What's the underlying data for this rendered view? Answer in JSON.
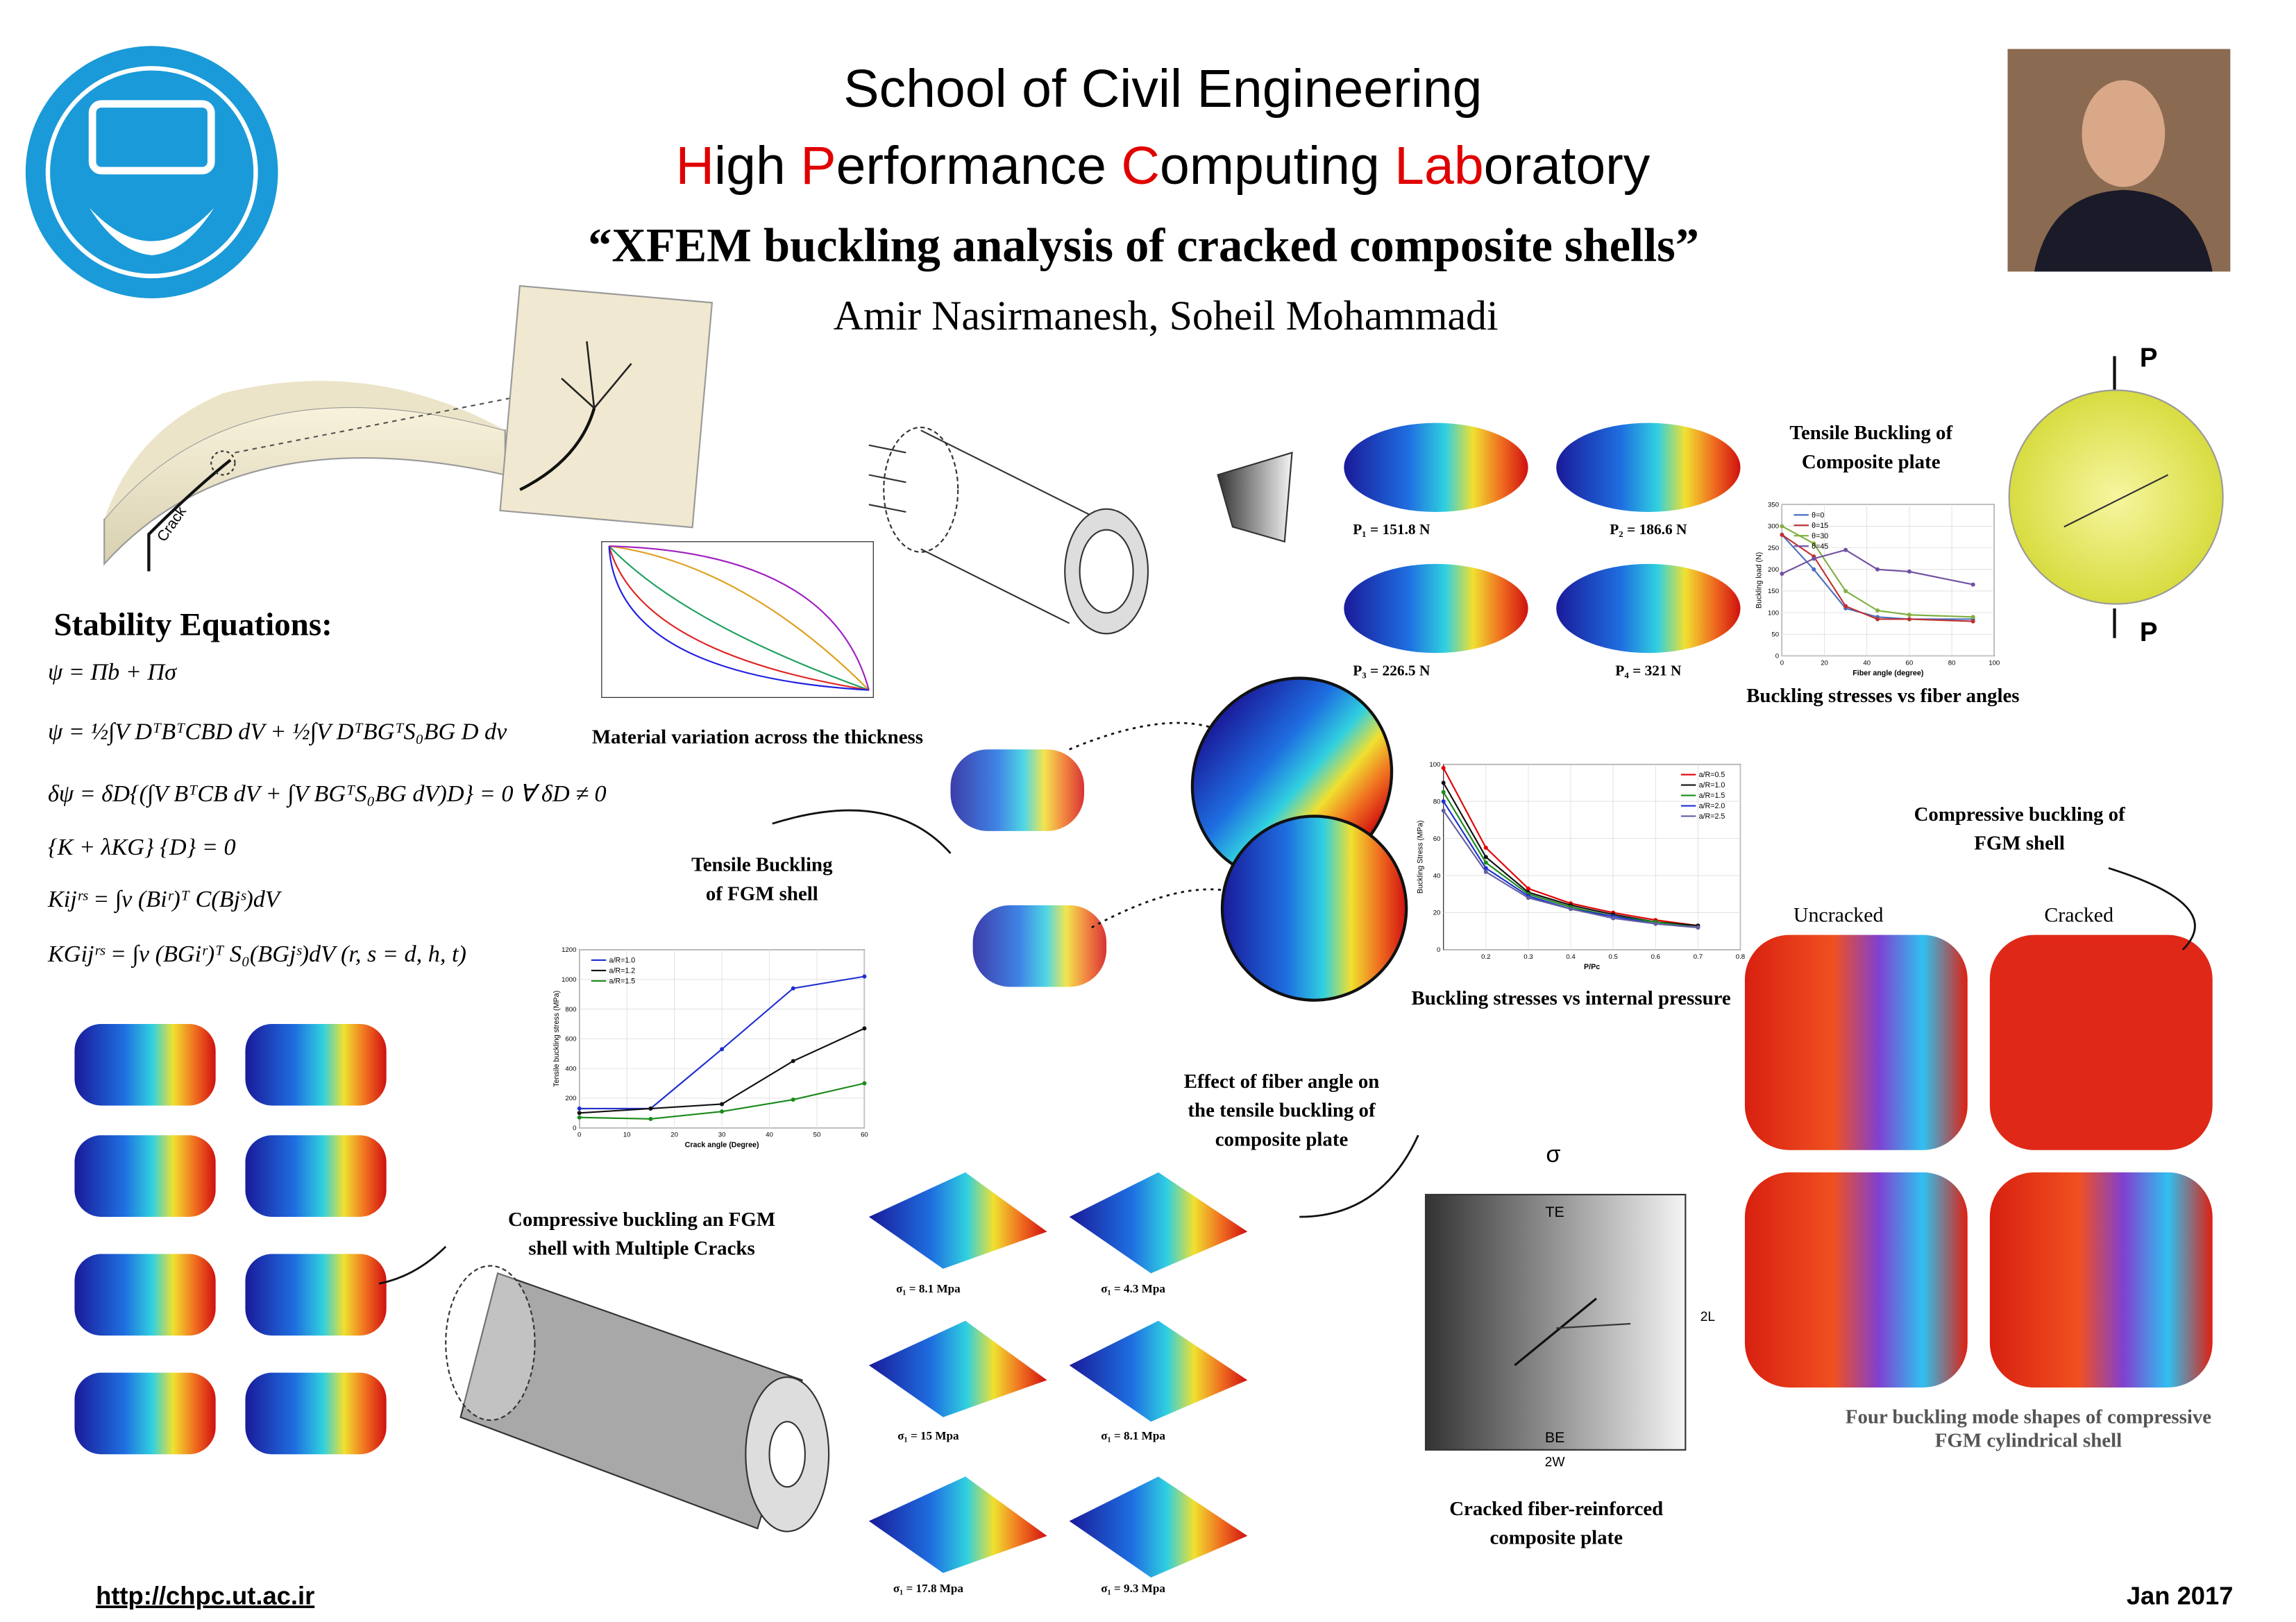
{
  "header": {
    "title": "School of Civil Engineering",
    "lab": [
      "H",
      "igh ",
      "P",
      "erformance ",
      "C",
      "omputing ",
      "Lab",
      "oratory"
    ],
    "highlight_color": "#e00000",
    "subtitle": "“XFEM buckling analysis of cracked composite shells”",
    "authors": "Amir Nasirmanesh, Soheil Mohammadi"
  },
  "stability": {
    "heading": "Stability Equations:",
    "equations": [
      "ψ = Πb + Πσ",
      "ψ = ½∫V DᵀBᵀCBD dV + ½∫V DᵀBGᵀS₀BG D dv",
      "δψ = δD{(∫V BᵀCB dV + ∫V BGᵀS₀BG dV)D} = 0     ∀ δD ≠ 0",
      "{K + λKG} {D} = 0",
      "Kijʳˢ = ∫v (Biʳ)ᵀ C(Bjˢ)dV",
      "KGijʳˢ = ∫v (BGiʳ)ᵀ S₀(BGjˢ)dV            (r, s = d, h, t)"
    ]
  },
  "captions": {
    "material": [
      "Material variation across the thickness"
    ],
    "tensile_plate": [
      "Tensile Buckling of",
      "Composite plate"
    ],
    "fiber_angles": [
      "Buckling stresses vs fiber angles"
    ],
    "tensile_fgm": [
      "Tensile Buckling",
      "of FGM shell"
    ],
    "compressive_fgm": [
      "Compressive buckling of",
      "FGM shell"
    ],
    "pressure": [
      "Buckling stresses vs internal pressure"
    ],
    "fiber_effect": [
      "Effect of fiber angle on",
      "the tensile buckling of",
      "composite plate"
    ],
    "multiple": [
      "Compressive buckling an FGM",
      "shell with Multiple Cracks"
    ],
    "cracked_plate": [
      "Cracked fiber-reinforced",
      "composite plate"
    ],
    "four_modes": [
      "Four buckling mode shapes of compressive",
      "FGM cylindrical shell"
    ]
  },
  "labels": {
    "crack": "Crack",
    "uncracked": "Uncracked",
    "cracked": "Cracked",
    "P_top": "P",
    "P_bottom": "P",
    "sigma": "σ",
    "TE": "TE",
    "BE": "BE",
    "width": "2W",
    "length": "2L"
  },
  "plate_loads": [
    "P₁ = 151.8 N",
    "P₂ = 186.6 N",
    "P₃ = 226.5 N",
    "P₄ = 321 N"
  ],
  "fiber_stresses": [
    "σ₁ = 8.1 Mpa",
    "σ₁ = 4.3 Mpa",
    "σ₁ = 15 Mpa",
    "σ₁ = 8.1 Mpa",
    "σ₁ = 17.8 Mpa",
    "σ₁ = 9.3 Mpa"
  ],
  "charts": [
    {
      "type": "line",
      "xlabel": "Crack angle (Degree)",
      "ylabel": "Tensile buckling stress (MPa)",
      "x": [
        0,
        15,
        30,
        45,
        60
      ],
      "xlim": [
        0,
        60
      ],
      "xticks": [
        0,
        10,
        20,
        30,
        40,
        50,
        60
      ],
      "ylim": [
        0,
        1200
      ],
      "yticks": [
        0,
        200,
        400,
        600,
        800,
        1000,
        1200
      ],
      "series": [
        {
          "name": "a/R=1.0",
          "color": "#1f2fd0",
          "values": [
            130,
            130,
            530,
            940,
            1020
          ]
        },
        {
          "name": "a/R=1.2",
          "color": "#111111",
          "values": [
            100,
            130,
            160,
            450,
            670
          ]
        },
        {
          "name": "a/R=1.5",
          "color": "#1a8a1a",
          "values": [
            70,
            60,
            110,
            190,
            300
          ]
        }
      ]
    },
    {
      "type": "line",
      "xlabel": "P/Pc",
      "ylabel": "Buckling Stress (MPa)",
      "x": [
        0.1,
        0.2,
        0.3,
        0.4,
        0.5,
        0.6,
        0.7
      ],
      "xlim": [
        0.1,
        0.8
      ],
      "xticks": [
        0.2,
        0.3,
        0.4,
        0.5,
        0.6,
        0.7,
        0.8
      ],
      "ylim": [
        0,
        100
      ],
      "yticks": [
        0,
        20,
        40,
        60,
        80,
        100
      ],
      "series": [
        {
          "name": "a/R=0.5",
          "color": "#e00000",
          "values": [
            98,
            55,
            33,
            25,
            20,
            16,
            13
          ]
        },
        {
          "name": "a/R=1.0",
          "color": "#111111",
          "values": [
            90,
            50,
            31,
            24,
            19,
            15,
            13
          ]
        },
        {
          "name": "a/R=1.5",
          "color": "#1a8a1a",
          "values": [
            85,
            47,
            30,
            23,
            18,
            15,
            12
          ]
        },
        {
          "name": "a/R=2.0",
          "color": "#1f2fd0",
          "values": [
            80,
            44,
            29,
            22,
            18,
            14,
            12
          ]
        },
        {
          "name": "a/R=2.5",
          "color": "#6060a0",
          "values": [
            75,
            42,
            28,
            22,
            17,
            14,
            12
          ]
        }
      ]
    },
    {
      "type": "line",
      "xlabel": "Fiber angle (degree)",
      "ylabel": "Buckling load (N)",
      "x": [
        0,
        15,
        30,
        45,
        60,
        90
      ],
      "xlim": [
        0,
        100
      ],
      "xticks": [
        0,
        20,
        40,
        60,
        80,
        100
      ],
      "ylim": [
        0,
        350
      ],
      "yticks": [
        0,
        50,
        100,
        150,
        200,
        250,
        300,
        350
      ],
      "series": [
        {
          "name": "θ=0",
          "color": "#4a6fc0",
          "values": [
            280,
            200,
            110,
            90,
            85,
            85
          ]
        },
        {
          "name": "θ=15",
          "color": "#c03030",
          "values": [
            280,
            230,
            115,
            85,
            85,
            80
          ]
        },
        {
          "name": "θ=30",
          "color": "#80b040",
          "values": [
            300,
            260,
            150,
            105,
            95,
            90
          ]
        },
        {
          "name": "θ=45",
          "color": "#7050a0",
          "values": [
            190,
            225,
            245,
            200,
            195,
            165
          ]
        }
      ]
    }
  ],
  "footer": {
    "url": "http://chpc.ut.ac.ir",
    "date": "Jan 2017"
  }
}
